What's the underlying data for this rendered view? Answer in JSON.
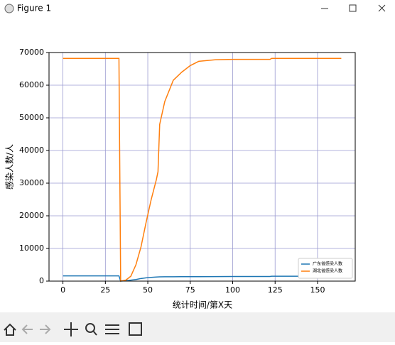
{
  "window": {
    "title": "Figure 1"
  },
  "chart_data": {
    "type": "line",
    "x_label": "统计时间/第X天",
    "y_label": "感染人数/人",
    "x": [
      0,
      33,
      34,
      37,
      40,
      43,
      46,
      49,
      52,
      55,
      56,
      57,
      60,
      65,
      70,
      75,
      80,
      90,
      100,
      122,
      123,
      164
    ],
    "series": [
      {
        "name": "广东省感染人数",
        "color": "#1f77b4",
        "values": [
          1600,
          1600,
          0,
          100,
          300,
          500,
          800,
          1000,
          1150,
          1250,
          1280,
          1300,
          1320,
          1340,
          1350,
          1360,
          1370,
          1380,
          1400,
          1420,
          1500,
          1500
        ]
      },
      {
        "name": "湖北省感染人数",
        "color": "#ff7f0e",
        "values": [
          68200,
          68200,
          0,
          300,
          1500,
          5000,
          10500,
          18000,
          25000,
          31000,
          33500,
          48000,
          55000,
          61500,
          64000,
          66000,
          67300,
          67800,
          67900,
          67900,
          68200,
          68200
        ]
      }
    ],
    "xlim": [
      -8.2,
      172.2
    ],
    "ylim": [
      0,
      70000
    ],
    "xticks": [
      0,
      25,
      50,
      75,
      100,
      125,
      150
    ],
    "yticks": [
      0,
      10000,
      20000,
      30000,
      40000,
      50000,
      60000,
      70000
    ],
    "grid": true,
    "grid_color": "#9a9ad0",
    "legend": "lower right"
  }
}
